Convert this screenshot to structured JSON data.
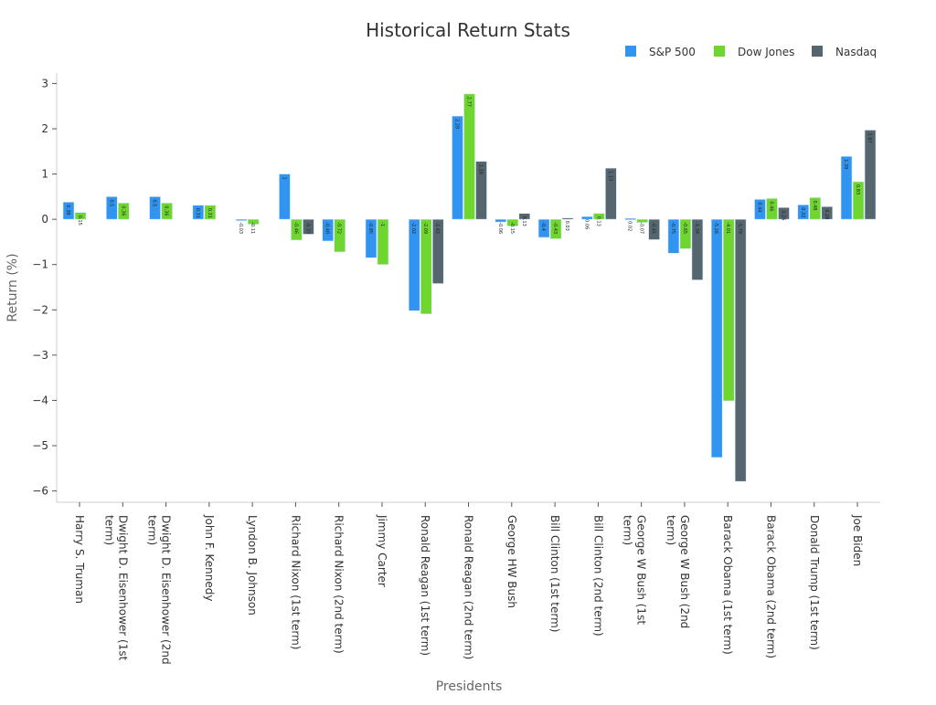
{
  "chart_data": {
    "type": "bar",
    "title": "Historical Return Stats",
    "xlabel": "Presidents",
    "ylabel": "Return (%)",
    "ylim": [
      -6.25,
      3.23
    ],
    "yticks": [
      3,
      2,
      1,
      0,
      -1,
      -2,
      -3,
      -4,
      -5,
      -6
    ],
    "grid": false,
    "legend_position": "top-right",
    "categories": [
      "Harry S. Truman",
      "Dwight D. Eisenhower (1st\nterm)",
      "Dwight D. Eisenhower (2nd\nterm)",
      "John F. Kennedy",
      "Lyndon B. Johnson",
      "Richard Nixon (1st term)",
      "Richard Nixon (2nd term)",
      "Jimmy Carter",
      "Ronald Reagan (1st term)",
      "Ronald Reagan (2nd term)",
      "George HW Bush",
      "Bill Clinton (1st term)",
      "Bill Clinton (2nd term)",
      "George W Bush (1st\nterm)",
      "George W Bush (2nd\nterm)",
      "Barack Obama (1st term)",
      "Barack Obama (2nd term)",
      "Donald Trump (1st term)",
      "Joe Biden"
    ],
    "series": [
      {
        "name": "S&P 500",
        "color": "#3194f0",
        "values": [
          0.38,
          0.5,
          0.5,
          0.31,
          -0.03,
          1.0,
          -0.48,
          -0.85,
          -2.02,
          2.28,
          -0.06,
          -0.4,
          0.06,
          0.02,
          -0.75,
          -5.26,
          0.44,
          0.32,
          1.39
        ]
      },
      {
        "name": "Dow Jones",
        "color": "#6ed62f",
        "values": [
          0.15,
          0.36,
          0.36,
          0.31,
          -0.11,
          -0.46,
          -0.72,
          -1.0,
          -2.09,
          2.77,
          -0.15,
          -0.43,
          0.13,
          -0.07,
          -0.65,
          -4.01,
          0.46,
          0.48,
          0.83
        ]
      },
      {
        "name": "Nasdaq",
        "color": "#56666f",
        "values": [
          null,
          null,
          null,
          null,
          null,
          -0.33,
          null,
          null,
          -1.42,
          1.28,
          0.13,
          0.03,
          1.13,
          -0.45,
          -1.34,
          -5.79,
          0.26,
          0.28,
          1.97
        ]
      }
    ]
  }
}
